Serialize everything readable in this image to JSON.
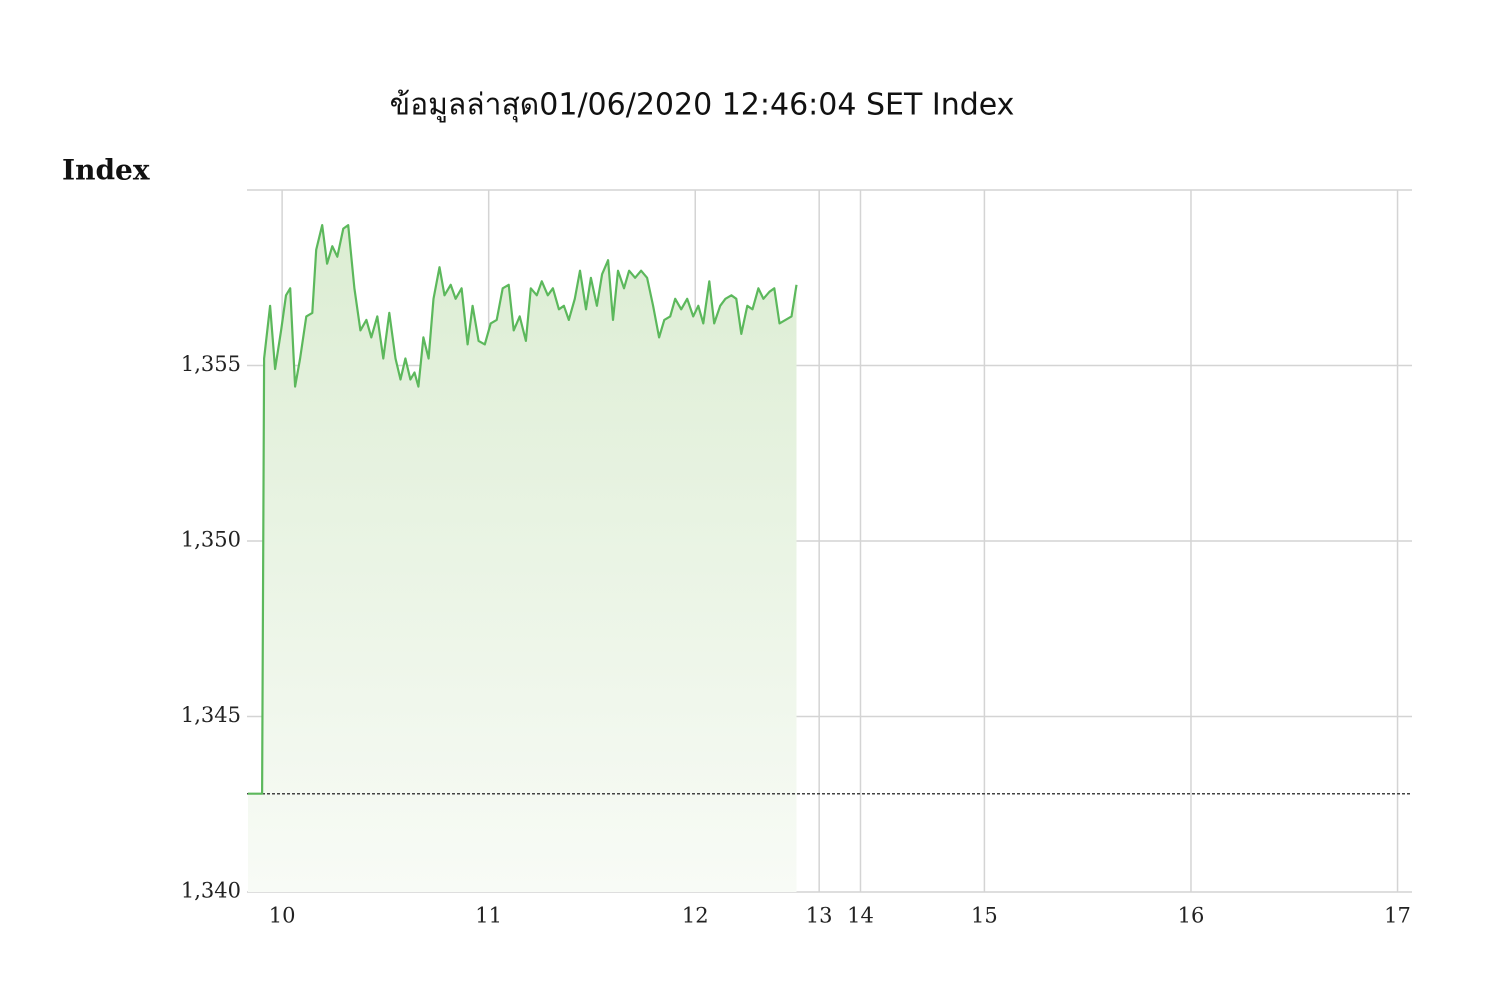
{
  "chart_data": {
    "type": "line",
    "title": "ข้อมูลล่าสุด01/06/2020 12:46:04  SET Index",
    "y_label": "Index",
    "xlim": [
      9.83,
      17.07
    ],
    "xticks": [
      10,
      11,
      12,
      13,
      14,
      15,
      16,
      17
    ],
    "axis_break": {
      "range": [
        12.5,
        14.5
      ],
      "scale": 0.2
    },
    "ylim": [
      1340,
      1360
    ],
    "yticks": [
      {
        "value": 1340,
        "label": "1,340"
      },
      {
        "value": 1345,
        "label": "1,345"
      },
      {
        "value": 1350,
        "label": "1,350"
      },
      {
        "value": 1355,
        "label": "1,355"
      }
    ],
    "grid": true,
    "reference_line": 1342.8,
    "x": [
      9.835,
      9.903,
      9.913,
      9.942,
      9.966,
      9.995,
      10.019,
      10.039,
      10.063,
      10.087,
      10.117,
      10.146,
      10.165,
      10.194,
      10.218,
      10.243,
      10.267,
      10.296,
      10.32,
      10.35,
      10.379,
      10.408,
      10.432,
      10.461,
      10.49,
      10.519,
      10.549,
      10.573,
      10.597,
      10.621,
      10.641,
      10.66,
      10.684,
      10.709,
      10.733,
      10.762,
      10.786,
      10.816,
      10.84,
      10.869,
      10.898,
      10.922,
      10.951,
      10.981,
      11.01,
      11.039,
      11.068,
      11.097,
      11.121,
      11.15,
      11.18,
      11.204,
      11.233,
      11.257,
      11.286,
      11.311,
      11.34,
      11.364,
      11.388,
      11.417,
      11.442,
      11.471,
      11.495,
      11.524,
      11.549,
      11.578,
      11.602,
      11.626,
      11.655,
      11.68,
      11.709,
      11.738,
      11.767,
      11.796,
      11.825,
      11.85,
      11.879,
      11.903,
      11.932,
      11.961,
      11.99,
      12.015,
      12.039,
      12.068,
      12.092,
      12.121,
      12.146,
      12.175,
      12.199,
      12.223,
      12.252,
      12.277,
      12.306,
      12.33,
      12.359,
      12.383,
      12.408,
      12.437,
      12.466,
      12.49
    ],
    "series": [
      {
        "name": "SET Index",
        "color": "#5cb85c",
        "values": [
          1342.8,
          1342.8,
          1355.2,
          1356.7,
          1354.9,
          1356.0,
          1357.0,
          1357.2,
          1354.4,
          1355.2,
          1356.4,
          1356.5,
          1358.3,
          1359.0,
          1357.9,
          1358.4,
          1358.1,
          1358.9,
          1359.0,
          1357.2,
          1356.0,
          1356.3,
          1355.8,
          1356.4,
          1355.2,
          1356.5,
          1355.2,
          1354.6,
          1355.2,
          1354.6,
          1354.8,
          1354.4,
          1355.8,
          1355.2,
          1356.9,
          1357.8,
          1357.0,
          1357.3,
          1356.9,
          1357.2,
          1355.6,
          1356.7,
          1355.7,
          1355.6,
          1356.2,
          1356.3,
          1357.2,
          1357.3,
          1356.0,
          1356.4,
          1355.7,
          1357.2,
          1357.0,
          1357.4,
          1357.0,
          1357.2,
          1356.6,
          1356.7,
          1356.3,
          1356.9,
          1357.7,
          1356.6,
          1357.5,
          1356.7,
          1357.6,
          1358.0,
          1356.3,
          1357.7,
          1357.2,
          1357.7,
          1357.5,
          1357.7,
          1357.5,
          1356.7,
          1355.8,
          1356.3,
          1356.4,
          1356.9,
          1356.6,
          1356.9,
          1356.4,
          1356.7,
          1356.2,
          1357.4,
          1356.2,
          1356.7,
          1356.9,
          1357.0,
          1356.9,
          1355.9,
          1356.7,
          1356.6,
          1357.2,
          1356.9,
          1357.1,
          1357.2,
          1356.2,
          1356.3,
          1356.4,
          1357.3
        ]
      }
    ]
  }
}
